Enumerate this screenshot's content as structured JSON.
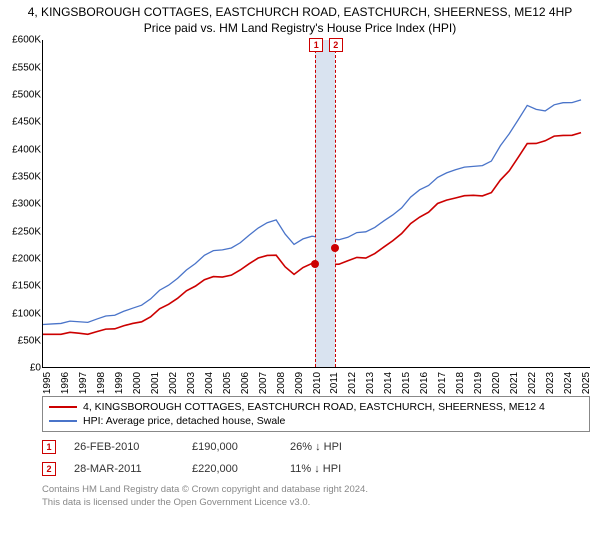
{
  "title_line1": "4, KINGSBOROUGH COTTAGES, EASTCHURCH ROAD, EASTCHURCH, SHEERNESS, ME12 4HP",
  "title_line2": "Price paid vs. HM Land Registry's House Price Index (HPI)",
  "chart": {
    "type": "line",
    "ylim": [
      0,
      600000
    ],
    "ytick_step": 50000,
    "ytick_prefix": "£",
    "ytick_suffix": "K",
    "x_years": [
      1995,
      1996,
      1997,
      1998,
      1999,
      2000,
      2001,
      2002,
      2003,
      2004,
      2005,
      2006,
      2007,
      2008,
      2009,
      2010,
      2011,
      2012,
      2013,
      2014,
      2015,
      2016,
      2017,
      2018,
      2019,
      2020,
      2021,
      2022,
      2023,
      2024,
      2025
    ],
    "background_color": "#ffffff",
    "axis_color": "#000000",
    "band_color": "#d9e3f0",
    "dash_color": "#cc0000",
    "series": [
      {
        "label": "4, KINGSBOROUGH COTTAGES, EASTCHURCH ROAD, EASTCHURCH, SHEERNESS, ME12 4",
        "color": "#cc0000",
        "line_width": 1.6,
        "data": [
          60,
          60,
          62,
          65,
          70,
          80,
          92,
          115,
          140,
          160,
          165,
          178,
          200,
          205,
          170,
          190,
          188,
          195,
          200,
          220,
          245,
          275,
          300,
          310,
          315,
          320,
          360,
          410,
          415,
          425,
          430
        ]
      },
      {
        "label": "HPI: Average price, detached house, Swale",
        "color": "#4a74c9",
        "line_width": 1.3,
        "data": [
          78,
          80,
          83,
          88,
          95,
          108,
          125,
          150,
          178,
          205,
          215,
          228,
          255,
          270,
          225,
          240,
          235,
          238,
          248,
          268,
          292,
          325,
          348,
          362,
          368,
          378,
          428,
          480,
          470,
          485,
          490
        ]
      }
    ],
    "transactions": [
      {
        "n": "1",
        "x_year": 2010.15,
        "price_k": 190
      },
      {
        "n": "2",
        "x_year": 2011.24,
        "price_k": 220
      }
    ]
  },
  "legend": {
    "border_color": "#888888"
  },
  "tx_rows": [
    {
      "n": "1",
      "date": "26-FEB-2010",
      "price": "£190,000",
      "pct": "26% ↓ HPI"
    },
    {
      "n": "2",
      "date": "28-MAR-2011",
      "price": "£220,000",
      "pct": "11% ↓ HPI"
    }
  ],
  "attribution_line1": "Contains HM Land Registry data © Crown copyright and database right 2024.",
  "attribution_line2": "This data is licensed under the Open Government Licence v3.0."
}
